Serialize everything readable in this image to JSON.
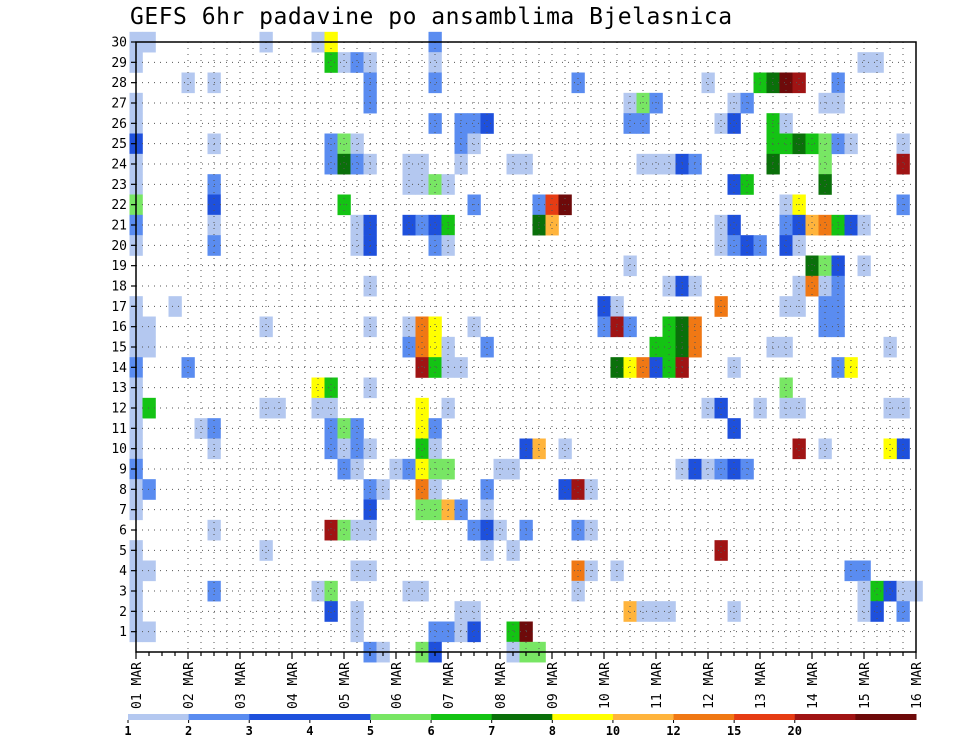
{
  "chart_data": {
    "type": "heatmap",
    "title": "GEFS 6hr padavine po ansamblima Bjelasnica",
    "x_tick_labels": [
      "01 MAR",
      "02 MAR",
      "03 MAR",
      "04 MAR",
      "05 MAR",
      "06 MAR",
      "07 MAR",
      "08 MAR",
      "09 MAR",
      "10 MAR",
      "11 MAR",
      "12 MAR",
      "13 MAR",
      "14 MAR",
      "15 MAR",
      "16 MAR"
    ],
    "y_tick_labels": [
      "1",
      "2",
      "3",
      "4",
      "5",
      "6",
      "7",
      "8",
      "9",
      "10",
      "11",
      "12",
      "13",
      "14",
      "15",
      "16",
      "17",
      "18",
      "19",
      "20",
      "21",
      "22",
      "23",
      "24",
      "25",
      "26",
      "27",
      "28",
      "29",
      "30"
    ],
    "x_range": [
      0,
      60
    ],
    "y_range": [
      0,
      30
    ],
    "x_units": "6-hour steps from 01 MAR",
    "y_units": "ensemble member",
    "grid": true,
    "colorbar": {
      "position": "bottom",
      "labels": [
        "1",
        "2",
        "3",
        "4",
        "5",
        "6",
        "7",
        "8",
        "10",
        "12",
        "15",
        "20"
      ],
      "colors": [
        "#b4c8f0",
        "#5a8cf0",
        "#1e50dc",
        "#1e50dc",
        "#78e664",
        "#14c314",
        "#0a700a",
        "#ffff00",
        "#ffb43c",
        "#f07814",
        "#e63c14",
        "#a01414",
        "#6e0a0a"
      ]
    },
    "cells": [
      [
        0,
        30,
        1
      ],
      [
        1,
        30,
        1
      ],
      [
        10,
        30,
        1
      ],
      [
        14,
        30,
        1
      ],
      [
        15,
        30,
        8
      ],
      [
        23,
        30,
        2
      ],
      [
        0,
        29,
        1
      ],
      [
        16,
        29,
        1
      ],
      [
        15,
        29,
        6
      ],
      [
        17,
        29,
        2
      ],
      [
        18,
        29,
        1
      ],
      [
        23,
        29,
        1
      ],
      [
        56,
        29,
        1
      ],
      [
        57,
        29,
        1
      ],
      [
        4,
        28,
        1
      ],
      [
        6,
        28,
        1
      ],
      [
        18,
        28,
        2
      ],
      [
        23,
        28,
        2
      ],
      [
        34,
        28,
        2
      ],
      [
        44,
        28,
        1
      ],
      [
        48,
        28,
        6
      ],
      [
        49,
        28,
        7
      ],
      [
        50,
        28,
        13
      ],
      [
        51,
        28,
        12
      ],
      [
        54,
        28,
        2
      ],
      [
        0,
        27,
        1
      ],
      [
        18,
        27,
        2
      ],
      [
        38,
        27,
        1
      ],
      [
        39,
        27,
        5
      ],
      [
        40,
        27,
        2
      ],
      [
        46,
        27,
        1
      ],
      [
        47,
        27,
        2
      ],
      [
        53,
        27,
        1
      ],
      [
        54,
        27,
        1
      ],
      [
        0,
        26,
        1
      ],
      [
        23,
        26,
        2
      ],
      [
        25,
        26,
        2
      ],
      [
        26,
        26,
        2
      ],
      [
        27,
        26,
        3
      ],
      [
        38,
        26,
        2
      ],
      [
        39,
        26,
        2
      ],
      [
        45,
        26,
        1
      ],
      [
        46,
        26,
        3
      ],
      [
        49,
        26,
        6
      ],
      [
        50,
        26,
        1
      ],
      [
        0,
        25,
        3
      ],
      [
        6,
        25,
        1
      ],
      [
        15,
        25,
        2
      ],
      [
        16,
        25,
        5
      ],
      [
        17,
        25,
        1
      ],
      [
        25,
        25,
        2
      ],
      [
        26,
        25,
        1
      ],
      [
        49,
        25,
        6
      ],
      [
        50,
        25,
        6
      ],
      [
        51,
        25,
        7
      ],
      [
        52,
        25,
        6
      ],
      [
        53,
        25,
        5
      ],
      [
        54,
        25,
        2
      ],
      [
        55,
        25,
        1
      ],
      [
        59,
        25,
        1
      ],
      [
        0,
        24,
        1
      ],
      [
        15,
        24,
        2
      ],
      [
        16,
        24,
        7
      ],
      [
        17,
        24,
        2
      ],
      [
        18,
        24,
        1
      ],
      [
        21,
        24,
        1
      ],
      [
        22,
        24,
        1
      ],
      [
        25,
        24,
        1
      ],
      [
        29,
        24,
        1
      ],
      [
        30,
        24,
        1
      ],
      [
        39,
        24,
        1
      ],
      [
        40,
        24,
        1
      ],
      [
        41,
        24,
        1
      ],
      [
        42,
        24,
        3
      ],
      [
        43,
        24,
        2
      ],
      [
        49,
        24,
        7
      ],
      [
        53,
        24,
        5
      ],
      [
        59,
        24,
        12
      ],
      [
        0,
        23,
        1
      ],
      [
        6,
        23,
        2
      ],
      [
        21,
        23,
        1
      ],
      [
        22,
        23,
        1
      ],
      [
        23,
        23,
        5
      ],
      [
        24,
        23,
        1
      ],
      [
        46,
        23,
        3
      ],
      [
        47,
        23,
        6
      ],
      [
        53,
        23,
        7
      ],
      [
        0,
        22,
        5
      ],
      [
        6,
        22,
        3
      ],
      [
        16,
        22,
        6
      ],
      [
        26,
        22,
        2
      ],
      [
        31,
        22,
        2
      ],
      [
        32,
        22,
        11
      ],
      [
        33,
        22,
        13
      ],
      [
        50,
        22,
        1
      ],
      [
        51,
        22,
        8
      ],
      [
        59,
        22,
        2
      ],
      [
        0,
        21,
        2
      ],
      [
        6,
        21,
        1
      ],
      [
        17,
        21,
        1
      ],
      [
        18,
        21,
        3
      ],
      [
        21,
        21,
        3
      ],
      [
        22,
        21,
        2
      ],
      [
        23,
        21,
        3
      ],
      [
        24,
        21,
        6
      ],
      [
        31,
        21,
        7
      ],
      [
        32,
        21,
        9
      ],
      [
        45,
        21,
        1
      ],
      [
        46,
        21,
        3
      ],
      [
        50,
        21,
        2
      ],
      [
        51,
        21,
        3
      ],
      [
        52,
        21,
        9
      ],
      [
        53,
        21,
        10
      ],
      [
        54,
        21,
        6
      ],
      [
        55,
        21,
        3
      ],
      [
        56,
        21,
        1
      ],
      [
        0,
        20,
        1
      ],
      [
        6,
        20,
        2
      ],
      [
        17,
        20,
        1
      ],
      [
        18,
        20,
        3
      ],
      [
        23,
        20,
        2
      ],
      [
        24,
        20,
        1
      ],
      [
        45,
        20,
        1
      ],
      [
        46,
        20,
        2
      ],
      [
        47,
        20,
        3
      ],
      [
        48,
        20,
        2
      ],
      [
        50,
        20,
        3
      ],
      [
        51,
        20,
        1
      ],
      [
        38,
        19,
        1
      ],
      [
        52,
        19,
        7
      ],
      [
        53,
        19,
        5
      ],
      [
        54,
        19,
        3
      ],
      [
        56,
        19,
        1
      ],
      [
        18,
        18,
        1
      ],
      [
        41,
        18,
        1
      ],
      [
        42,
        18,
        3
      ],
      [
        43,
        18,
        1
      ],
      [
        51,
        18,
        1
      ],
      [
        52,
        18,
        10
      ],
      [
        53,
        18,
        1
      ],
      [
        54,
        18,
        2
      ],
      [
        0,
        17,
        1
      ],
      [
        3,
        17,
        1
      ],
      [
        36,
        17,
        3
      ],
      [
        37,
        17,
        1
      ],
      [
        45,
        17,
        10
      ],
      [
        50,
        17,
        1
      ],
      [
        51,
        17,
        1
      ],
      [
        53,
        17,
        2
      ],
      [
        54,
        17,
        2
      ],
      [
        0,
        16,
        1
      ],
      [
        1,
        16,
        1
      ],
      [
        10,
        16,
        1
      ],
      [
        18,
        16,
        1
      ],
      [
        21,
        16,
        1
      ],
      [
        22,
        16,
        10
      ],
      [
        23,
        16,
        8
      ],
      [
        26,
        16,
        1
      ],
      [
        36,
        16,
        2
      ],
      [
        37,
        16,
        12
      ],
      [
        38,
        16,
        2
      ],
      [
        41,
        16,
        6
      ],
      [
        42,
        16,
        7
      ],
      [
        43,
        16,
        10
      ],
      [
        53,
        16,
        2
      ],
      [
        54,
        16,
        2
      ],
      [
        0,
        15,
        1
      ],
      [
        1,
        15,
        1
      ],
      [
        21,
        15,
        2
      ],
      [
        22,
        15,
        10
      ],
      [
        23,
        15,
        8
      ],
      [
        24,
        15,
        1
      ],
      [
        27,
        15,
        2
      ],
      [
        40,
        15,
        6
      ],
      [
        41,
        15,
        6
      ],
      [
        42,
        15,
        7
      ],
      [
        43,
        15,
        10
      ],
      [
        49,
        15,
        1
      ],
      [
        50,
        15,
        1
      ],
      [
        58,
        15,
        1
      ],
      [
        0,
        14,
        2
      ],
      [
        4,
        14,
        2
      ],
      [
        22,
        14,
        12
      ],
      [
        23,
        14,
        6
      ],
      [
        24,
        14,
        1
      ],
      [
        25,
        14,
        1
      ],
      [
        37,
        14,
        7
      ],
      [
        38,
        14,
        8
      ],
      [
        39,
        14,
        10
      ],
      [
        40,
        14,
        3
      ],
      [
        41,
        14,
        6
      ],
      [
        42,
        14,
        12
      ],
      [
        46,
        14,
        1
      ],
      [
        54,
        14,
        2
      ],
      [
        55,
        14,
        8
      ],
      [
        0,
        13,
        1
      ],
      [
        14,
        13,
        8
      ],
      [
        15,
        13,
        6
      ],
      [
        18,
        13,
        1
      ],
      [
        50,
        13,
        5
      ],
      [
        0,
        12,
        1
      ],
      [
        10,
        12,
        1
      ],
      [
        11,
        12,
        1
      ],
      [
        14,
        12,
        1
      ],
      [
        15,
        12,
        1
      ],
      [
        22,
        12,
        8
      ],
      [
        24,
        12,
        1
      ],
      [
        44,
        12,
        1
      ],
      [
        45,
        12,
        3
      ],
      [
        48,
        12,
        1
      ],
      [
        50,
        12,
        1
      ],
      [
        51,
        12,
        1
      ],
      [
        58,
        12,
        1
      ],
      [
        59,
        12,
        1
      ],
      [
        1,
        12,
        6
      ],
      [
        0,
        11,
        1
      ],
      [
        5,
        11,
        1
      ],
      [
        6,
        11,
        2
      ],
      [
        15,
        11,
        2
      ],
      [
        16,
        11,
        5
      ],
      [
        17,
        11,
        2
      ],
      [
        22,
        11,
        8
      ],
      [
        23,
        11,
        2
      ],
      [
        46,
        11,
        3
      ],
      [
        0,
        10,
        1
      ],
      [
        6,
        10,
        1
      ],
      [
        15,
        10,
        2
      ],
      [
        16,
        10,
        1
      ],
      [
        17,
        10,
        2
      ],
      [
        18,
        10,
        1
      ],
      [
        22,
        10,
        6
      ],
      [
        23,
        10,
        1
      ],
      [
        30,
        10,
        3
      ],
      [
        31,
        10,
        9
      ],
      [
        33,
        10,
        1
      ],
      [
        51,
        10,
        12
      ],
      [
        53,
        10,
        1
      ],
      [
        59,
        10,
        3
      ],
      [
        58,
        10,
        8
      ],
      [
        0,
        9,
        2
      ],
      [
        16,
        9,
        2
      ],
      [
        17,
        9,
        1
      ],
      [
        20,
        9,
        1
      ],
      [
        21,
        9,
        2
      ],
      [
        22,
        9,
        8
      ],
      [
        23,
        9,
        5
      ],
      [
        24,
        9,
        5
      ],
      [
        28,
        9,
        1
      ],
      [
        29,
        9,
        1
      ],
      [
        42,
        9,
        1
      ],
      [
        43,
        9,
        3
      ],
      [
        44,
        9,
        1
      ],
      [
        45,
        9,
        2
      ],
      [
        46,
        9,
        3
      ],
      [
        47,
        9,
        2
      ],
      [
        0,
        8,
        1
      ],
      [
        1,
        8,
        2
      ],
      [
        18,
        8,
        2
      ],
      [
        19,
        8,
        1
      ],
      [
        22,
        8,
        10
      ],
      [
        23,
        8,
        1
      ],
      [
        27,
        8,
        2
      ],
      [
        33,
        8,
        3
      ],
      [
        34,
        8,
        12
      ],
      [
        35,
        8,
        1
      ],
      [
        0,
        7,
        1
      ],
      [
        18,
        7,
        3
      ],
      [
        22,
        7,
        5
      ],
      [
        23,
        7,
        5
      ],
      [
        24,
        7,
        9
      ],
      [
        25,
        7,
        2
      ],
      [
        27,
        7,
        1
      ],
      [
        6,
        6,
        1
      ],
      [
        15,
        6,
        12
      ],
      [
        16,
        6,
        5
      ],
      [
        17,
        6,
        1
      ],
      [
        18,
        6,
        1
      ],
      [
        26,
        6,
        2
      ],
      [
        27,
        6,
        3
      ],
      [
        28,
        6,
        1
      ],
      [
        30,
        6,
        2
      ],
      [
        34,
        6,
        2
      ],
      [
        35,
        6,
        1
      ],
      [
        0,
        5,
        1
      ],
      [
        10,
        5,
        1
      ],
      [
        27,
        5,
        1
      ],
      [
        29,
        5,
        1
      ],
      [
        45,
        5,
        12
      ],
      [
        0,
        4,
        1
      ],
      [
        1,
        4,
        1
      ],
      [
        17,
        4,
        1
      ],
      [
        18,
        4,
        1
      ],
      [
        34,
        4,
        10
      ],
      [
        35,
        4,
        1
      ],
      [
        37,
        4,
        1
      ],
      [
        55,
        4,
        2
      ],
      [
        56,
        4,
        2
      ],
      [
        0,
        3,
        1
      ],
      [
        6,
        3,
        2
      ],
      [
        14,
        3,
        1
      ],
      [
        15,
        3,
        5
      ],
      [
        21,
        3,
        1
      ],
      [
        22,
        3,
        1
      ],
      [
        34,
        3,
        1
      ],
      [
        56,
        3,
        1
      ],
      [
        57,
        3,
        6
      ],
      [
        58,
        3,
        3
      ],
      [
        59,
        3,
        1
      ],
      [
        60,
        3,
        1
      ],
      [
        0,
        2,
        1
      ],
      [
        15,
        2,
        3
      ],
      [
        17,
        2,
        1
      ],
      [
        25,
        2,
        1
      ],
      [
        26,
        2,
        1
      ],
      [
        38,
        2,
        9
      ],
      [
        39,
        2,
        1
      ],
      [
        40,
        2,
        1
      ],
      [
        41,
        2,
        1
      ],
      [
        46,
        2,
        1
      ],
      [
        56,
        2,
        1
      ],
      [
        57,
        2,
        3
      ],
      [
        59,
        2,
        2
      ],
      [
        0,
        1,
        1
      ],
      [
        1,
        1,
        1
      ],
      [
        17,
        1,
        1
      ],
      [
        23,
        1,
        2
      ],
      [
        24,
        1,
        2
      ],
      [
        25,
        1,
        1
      ],
      [
        26,
        1,
        3
      ],
      [
        29,
        1,
        6
      ],
      [
        30,
        1,
        13
      ],
      [
        18,
        0,
        2
      ],
      [
        19,
        0,
        1
      ],
      [
        22,
        0,
        5
      ],
      [
        23,
        0,
        3
      ],
      [
        29,
        0,
        1
      ],
      [
        30,
        0,
        5
      ],
      [
        31,
        0,
        5
      ]
    ]
  }
}
